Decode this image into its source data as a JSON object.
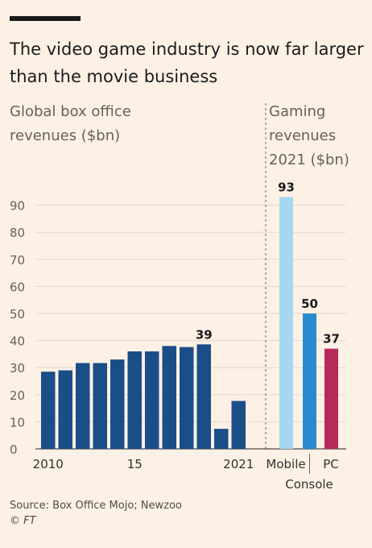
{
  "header": {
    "title": "The video game industry is now far larger than the movie business"
  },
  "left_panel": {
    "subtitle": "Global box office revenues ($bn)"
  },
  "right_panel": {
    "subtitle": "Gaming revenues 2021 ($bn)"
  },
  "footer": {
    "source": "Source: Box Office Mojo; Newzoo",
    "copyright_symbol": "©",
    "copyright_brand": "FT"
  },
  "chart_data": [
    {
      "type": "bar",
      "title": "Global box office revenues ($bn)",
      "categories": [
        "2010",
        "2011",
        "2012",
        "2013",
        "2014",
        "2015",
        "2016",
        "2017",
        "2018",
        "2019",
        "2020",
        "2021"
      ],
      "tick_labels": {
        "2010": "2010",
        "2015": "15",
        "2021": "2021"
      },
      "values": [
        28.5,
        29,
        31.7,
        31.7,
        33,
        36,
        36,
        38,
        37.6,
        38.6,
        7.4,
        17.7
      ],
      "data_labels": {
        "2019": "39"
      },
      "ylim": [
        0,
        95
      ],
      "yticks": [
        0,
        10,
        20,
        30,
        40,
        50,
        60,
        70,
        80,
        90
      ],
      "grid": true,
      "color": "#1b4d88"
    },
    {
      "type": "bar",
      "title": "Gaming revenues 2021 ($bn)",
      "categories": [
        "Mobile",
        "Console",
        "PC"
      ],
      "values": [
        93,
        50,
        37
      ],
      "data_labels": [
        "93",
        "50",
        "37"
      ],
      "colors": [
        "#a6d7f0",
        "#2a8ad0",
        "#b8285a"
      ],
      "ylim": [
        0,
        95
      ]
    }
  ]
}
